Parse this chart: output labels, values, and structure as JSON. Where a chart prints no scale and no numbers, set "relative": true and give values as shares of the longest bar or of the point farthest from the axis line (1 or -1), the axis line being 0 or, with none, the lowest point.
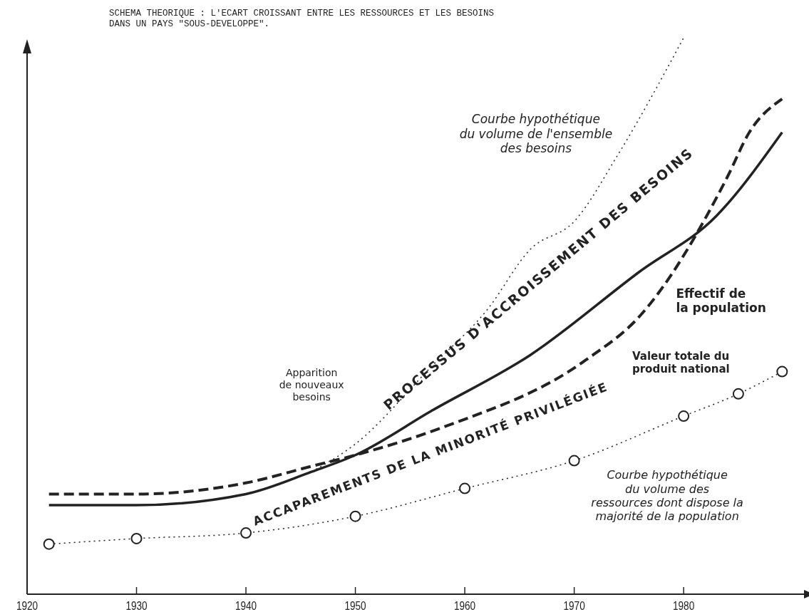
{
  "chart_data": {
    "type": "line",
    "relative": true,
    "title": "SCHEMA THEORIQUE : L'ECART CROISSANT ENTRE LES RESSOURCES ET LES BESOINS\nDANS UN PAYS \"SOUS-DEVELOPPE\".",
    "xlim": [
      1920,
      1991
    ],
    "xticks": [
      1920,
      1930,
      1940,
      1950,
      1960,
      1970,
      1980
    ],
    "series": [
      {
        "color": "#222222",
        "line_style": "dotted",
        "marker": "none",
        "x": [
          1946,
          1950,
          1957,
          1962,
          1966,
          1970,
          1974,
          1980
        ],
        "values": [
          0.22,
          0.27,
          0.41,
          0.51,
          0.62,
          0.67,
          0.79,
          1.0
        ]
      },
      {
        "color": "#222222",
        "line_style": "solid",
        "marker": "none",
        "x": [
          1922,
          1930,
          1940,
          1946,
          1950,
          1957,
          1966,
          1976,
          1983,
          1989
        ],
        "values": [
          0.16,
          0.16,
          0.18,
          0.22,
          0.25,
          0.33,
          0.43,
          0.58,
          0.68,
          0.83
        ]
      },
      {
        "color": "#222222",
        "line_style": "dashed",
        "marker": "none",
        "x": [
          1922,
          1930,
          1940,
          1946,
          1950,
          1958,
          1971,
          1976,
          1984,
          1986,
          1989
        ],
        "values": [
          0.18,
          0.18,
          0.2,
          0.23,
          0.25,
          0.3,
          0.42,
          0.5,
          0.75,
          0.83,
          0.89
        ]
      },
      {
        "color": "#222222",
        "line_style": "dotted",
        "marker": "circle",
        "x": [
          1922,
          1930,
          1940,
          1950,
          1960,
          1970,
          1980,
          1985,
          1989
        ],
        "values": [
          0.09,
          0.1,
          0.11,
          0.14,
          0.19,
          0.24,
          0.32,
          0.36,
          0.4
        ]
      }
    ],
    "annotations": [
      "Apparition\nde nouveaux\nbesoins",
      "Courbe hypothétique\ndu volume de l'ensemble\ndes besoins",
      "PROCESSUS D'ACCROISSEMENT DES BESOINS",
      "ACCAPAREMENTS DE LA MINORITÉ PRIVILÉGIÉE",
      "Effectif de\nla population",
      "Valeur totale du\nproduit national",
      "Courbe hypothétique\ndu volume des\nressources dont dispose la\nmajorité de la population"
    ]
  }
}
